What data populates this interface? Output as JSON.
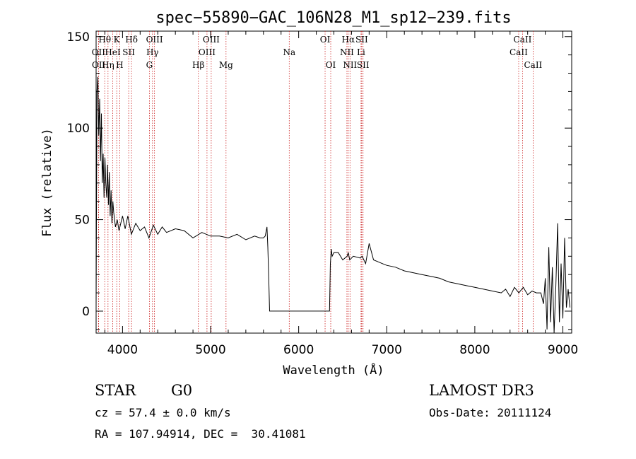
{
  "chart_data": {
    "type": "line",
    "title": "spec−55890−GAC_106N28_M1_sp12−239.fits",
    "xlabel": "Wavelength (Å)",
    "ylabel": "Flux (relative)",
    "xlim": [
      3700,
      9100
    ],
    "ylim": [
      -12,
      153
    ],
    "xticks": [
      4000,
      5000,
      6000,
      7000,
      8000,
      9000
    ],
    "yticks": [
      0,
      50,
      100,
      150
    ],
    "line_color": "#000000",
    "marker_color": "#cc2222",
    "spectral_lines": [
      {
        "label": "Hθ",
        "wavelength": 3798,
        "row": 0
      },
      {
        "label": "OII",
        "wavelength": 3727,
        "row": 1
      },
      {
        "label": "OII",
        "wavelength": 3729,
        "row": 2
      },
      {
        "label": "Hη",
        "wavelength": 3835,
        "row": 2
      },
      {
        "label": "HeI",
        "wavelength": 3889,
        "row": 1
      },
      {
        "label": "K",
        "wavelength": 3934,
        "row": 0
      },
      {
        "label": "H",
        "wavelength": 3968,
        "row": 2
      },
      {
        "label": "SII",
        "wavelength": 4070,
        "row": 1
      },
      {
        "label": "Hδ",
        "wavelength": 4102,
        "row": 0
      },
      {
        "label": "OIII",
        "wavelength": 4363,
        "row": 0
      },
      {
        "label": "Hγ",
        "wavelength": 4340,
        "row": 1
      },
      {
        "label": "G",
        "wavelength": 4305,
        "row": 2
      },
      {
        "label": "Hβ",
        "wavelength": 4861,
        "row": 2
      },
      {
        "label": "OIII",
        "wavelength": 5007,
        "row": 0
      },
      {
        "label": "OIII",
        "wavelength": 4959,
        "row": 1
      },
      {
        "label": "Mg",
        "wavelength": 5175,
        "row": 2
      },
      {
        "label": "Na",
        "wavelength": 5893,
        "row": 1
      },
      {
        "label": "OI",
        "wavelength": 6300,
        "row": 0
      },
      {
        "label": "OI",
        "wavelength": 6364,
        "row": 2
      },
      {
        "label": "Hα",
        "wavelength": 6563,
        "row": 0
      },
      {
        "label": "NII",
        "wavelength": 6548,
        "row": 1
      },
      {
        "label": "NII",
        "wavelength": 6583,
        "row": 2
      },
      {
        "label": "SII",
        "wavelength": 6716,
        "row": 0
      },
      {
        "label": "Li",
        "wavelength": 6708,
        "row": 1
      },
      {
        "label": "SII",
        "wavelength": 6731,
        "row": 2
      },
      {
        "label": "CaII",
        "wavelength": 8542,
        "row": 0
      },
      {
        "label": "CaII",
        "wavelength": 8498,
        "row": 1
      },
      {
        "label": "CaII",
        "wavelength": 8662,
        "row": 2
      }
    ],
    "spectrum": {
      "x": [
        3700,
        3710,
        3720,
        3730,
        3740,
        3750,
        3760,
        3770,
        3780,
        3790,
        3800,
        3810,
        3820,
        3830,
        3840,
        3850,
        3860,
        3870,
        3880,
        3890,
        3900,
        3920,
        3940,
        3960,
        3980,
        4000,
        4030,
        4060,
        4100,
        4150,
        4200,
        4250,
        4300,
        4350,
        4400,
        4450,
        4500,
        4600,
        4700,
        4800,
        4900,
        5000,
        5100,
        5200,
        5300,
        5400,
        5500,
        5560,
        5600,
        5620,
        5640,
        5650,
        5660,
        5670,
        5680,
        6300,
        6350,
        6360,
        6370,
        6380,
        6400,
        6450,
        6500,
        6550,
        6563,
        6580,
        6620,
        6700,
        6720,
        6760,
        6800,
        6850,
        6900,
        6950,
        7000,
        7100,
        7200,
        7300,
        7400,
        7500,
        7600,
        7700,
        7800,
        7900,
        8000,
        8100,
        8200,
        8300,
        8350,
        8400,
        8450,
        8500,
        8550,
        8600,
        8650,
        8700,
        8750,
        8780,
        8800,
        8820,
        8840,
        8860,
        8880,
        8900,
        8920,
        8940,
        8960,
        8980,
        9000,
        9020,
        9040,
        9060,
        9080
      ],
      "y": [
        3,
        120,
        128,
        96,
        116,
        82,
        108,
        70,
        86,
        62,
        84,
        70,
        62,
        80,
        58,
        76,
        52,
        66,
        48,
        60,
        54,
        46,
        50,
        44,
        48,
        52,
        45,
        52,
        42,
        48,
        44,
        46,
        40,
        47,
        42,
        46,
        43,
        45,
        44,
        40,
        43,
        41,
        41,
        40,
        42,
        39,
        41,
        40,
        40,
        41,
        46,
        35,
        18,
        0,
        0,
        0,
        0,
        26,
        34,
        30,
        32,
        32,
        28,
        30,
        32,
        28,
        30,
        29,
        30,
        26,
        37,
        28,
        27,
        26,
        25,
        24,
        22,
        21,
        20,
        19,
        18,
        16,
        15,
        14,
        13,
        12,
        11,
        10,
        12,
        8,
        13,
        10,
        13,
        9,
        11,
        10,
        10,
        4,
        18,
        -10,
        35,
        -6,
        24,
        -12,
        14,
        48,
        -6,
        26,
        -4,
        40,
        2,
        12,
        2
      ]
    }
  },
  "info": {
    "object_type": "STAR",
    "subclass": "G0",
    "survey": "LAMOST DR3",
    "redshift": "cz = 57.4 ± 0.0 km/s",
    "obs_date": "Obs-Date: 20111124",
    "coords": "RA = 107.94914, DEC =  30.41081"
  }
}
